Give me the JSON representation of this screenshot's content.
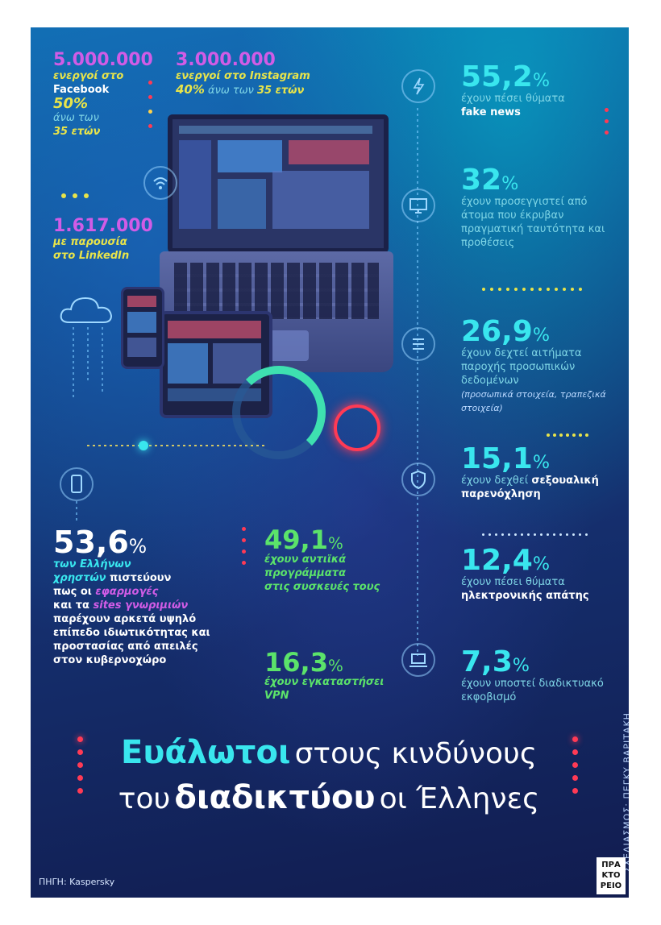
{
  "facebook": {
    "number": "5.000.000",
    "line1": "ενεργοί στο",
    "line2": "Facebook",
    "pct": "50%",
    "line3": "άνω των",
    "line4": "35 ετών"
  },
  "instagram": {
    "number": "3.000.000",
    "line1": "ενεργοί στο Instagram",
    "pct": "40%",
    "line2": "άνω των",
    "line3": "35 ετών"
  },
  "linkedin": {
    "number": "1.617.000",
    "line1": "με παρουσία",
    "line2": "στο LinkedIn"
  },
  "stats_right": [
    {
      "value": "55,2",
      "unit": "%",
      "desc": "έχουν πέσει θύματα",
      "bold": "fake news",
      "tail": ""
    },
    {
      "value": "32",
      "unit": "%",
      "desc": "έχουν προσεγγιστεί από άτομα που έκρυβαν πραγματική ταυτότητα και προθέσεις",
      "bold": "",
      "tail": ""
    },
    {
      "value": "26,9",
      "unit": "%",
      "desc": "έχουν δεχτεί αιτήματα παροχής προσωπικών δεδομένων",
      "bold": "",
      "tail": "(προσωπικά στοιχεία, τραπεζικά στοιχεία)"
    },
    {
      "value": "15,1",
      "unit": "%",
      "desc": "έχουν δεχθεί",
      "bold": "σεξουαλική παρενόχληση",
      "tail": ""
    },
    {
      "value": "12,4",
      "unit": "%",
      "desc": "έχουν πέσει θύματα",
      "bold": "ηλεκτρονικής απάτης",
      "tail": ""
    },
    {
      "value": "7,3",
      "unit": "%",
      "desc": "έχουν υποστεί διαδικτυακό εκφοβισμό",
      "bold": "",
      "tail": ""
    }
  ],
  "left_stat": {
    "value": "53,6",
    "unit": "%",
    "l1": "των Ελλήνων",
    "l2": "χρηστών",
    "l2b": " πιστεύουν",
    "l3a": "πως οι ",
    "l3b": "εφαρμογές",
    "l4a": "και τα ",
    "l4b": "sites γνωριμιών",
    "l5": "παρέχουν αρκετά υψηλό",
    "l6": "επίπεδο ιδιωτικότητας και",
    "l7": "προστασίας από απειλές",
    "l8": "στον κυβερνοχώρο"
  },
  "center_stats": [
    {
      "value": "49,1",
      "unit": "%",
      "l1": "έχουν αντιϊκά",
      "l2": "προγράμματα",
      "l3": "στις συσκευές τους"
    },
    {
      "value": "16,3",
      "unit": "%",
      "l1": "έχουν εγκαταστήσει",
      "l2": "VPN",
      "l3": ""
    }
  ],
  "title": {
    "w1": "Ευάλωτοι",
    "w2": "στους κινδύνους",
    "w3": "του",
    "w4": "διαδικτύου",
    "w5": "οι Έλληνες"
  },
  "credit": "ΣΧΕΔΙΑΣΜΟΣ: ΠΕΓΚΥ ΒΑΡΙΤΑΚΗ",
  "source": "ΠΗΓΗ: Kaspersky",
  "logo": {
    "l1": "ΠΡΑ",
    "l2": "ΚΤΟ",
    "l3": "ΡΕΙΟ"
  },
  "colors": {
    "cyan": "#39e6ee",
    "green": "#5be36a",
    "yellow": "#e8e44a",
    "magenta": "#d15ce6",
    "red": "#ff3a55"
  },
  "icons": [
    "lightning-icon",
    "wifi-icon",
    "monitor-icon",
    "list-icon",
    "shield-icon",
    "phone-icon",
    "cloud-icon",
    "laptop-icon"
  ]
}
